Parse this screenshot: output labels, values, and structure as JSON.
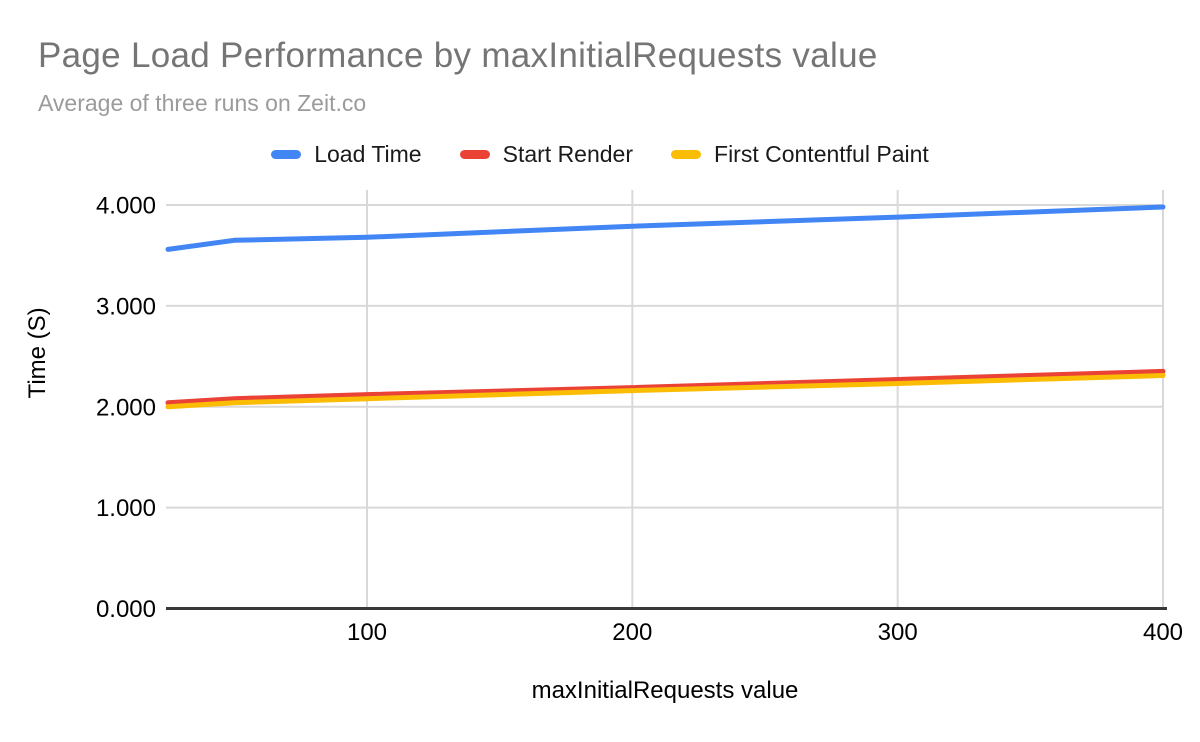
{
  "chart_data": {
    "type": "line",
    "title": "Page Load Performance by maxInitialRequests value",
    "subtitle": "Average of three runs on Zeit.co",
    "xlabel": "maxInitialRequests value",
    "ylabel": "Time (S)",
    "x": [
      25,
      50,
      100,
      200,
      300,
      400
    ],
    "series": [
      {
        "name": "Load Time",
        "color": "#4285F4",
        "values": [
          3.56,
          3.65,
          3.68,
          3.79,
          3.88,
          3.98
        ]
      },
      {
        "name": "Start Render",
        "color": "#EA4335",
        "values": [
          2.04,
          2.08,
          2.12,
          2.19,
          2.27,
          2.35
        ]
      },
      {
        "name": "First Contentful Paint",
        "color": "#FBBC04",
        "values": [
          2.0,
          2.04,
          2.08,
          2.16,
          2.23,
          2.31
        ]
      }
    ],
    "xlim": [
      25,
      400
    ],
    "ylim": [
      0,
      4
    ],
    "x_ticks": [
      {
        "value": 100,
        "label": "100"
      },
      {
        "value": 200,
        "label": "200"
      },
      {
        "value": 300,
        "label": "300"
      },
      {
        "value": 400,
        "label": "400"
      }
    ],
    "y_ticks": [
      {
        "value": 0,
        "label": "0.000"
      },
      {
        "value": 1,
        "label": "1.000"
      },
      {
        "value": 2,
        "label": "2.000"
      },
      {
        "value": 3,
        "label": "3.000"
      },
      {
        "value": 4,
        "label": "4.000"
      }
    ],
    "grid": true,
    "legend_position": "top",
    "colors": {
      "title_text": "#757575",
      "subtitle_text": "#9b9b9b",
      "gridline": "#d9d9d9",
      "axis_line": "#383838",
      "tick_text": "#000000"
    }
  }
}
